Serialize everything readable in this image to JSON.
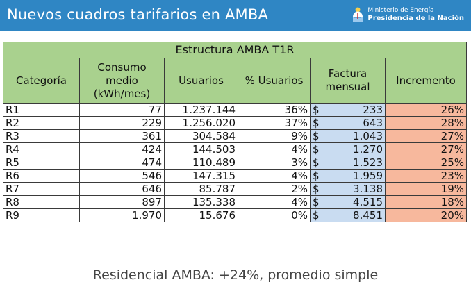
{
  "header": {
    "title": "Nuevos cuadros tarifarios en AMBA",
    "ministry_line1": "Ministerio de Energía",
    "ministry_line2": "Presidencia de la Nación"
  },
  "table": {
    "title": "Estructura AMBA T1R",
    "columns": [
      "Categoría",
      "Consumo medio (kWh/mes)",
      "Usuarios",
      "% Usuarios",
      "Factura mensual",
      "Incremento"
    ],
    "currency": "$",
    "rows": [
      {
        "categoria": "R1",
        "consumo": "77",
        "usuarios": "1.237.144",
        "pct": "36%",
        "factura": "233",
        "incremento": "26%"
      },
      {
        "categoria": "R2",
        "consumo": "229",
        "usuarios": "1.256.020",
        "pct": "37%",
        "factura": "643",
        "incremento": "28%"
      },
      {
        "categoria": "R3",
        "consumo": "361",
        "usuarios": "304.584",
        "pct": "9%",
        "factura": "1.043",
        "incremento": "27%"
      },
      {
        "categoria": "R4",
        "consumo": "424",
        "usuarios": "144.503",
        "pct": "4%",
        "factura": "1.270",
        "incremento": "27%"
      },
      {
        "categoria": "R5",
        "consumo": "474",
        "usuarios": "110.489",
        "pct": "3%",
        "factura": "1.523",
        "incremento": "25%"
      },
      {
        "categoria": "R6",
        "consumo": "546",
        "usuarios": "147.315",
        "pct": "4%",
        "factura": "1.959",
        "incremento": "23%"
      },
      {
        "categoria": "R7",
        "consumo": "646",
        "usuarios": "85.787",
        "pct": "2%",
        "factura": "3.138",
        "incremento": "19%"
      },
      {
        "categoria": "R8",
        "consumo": "897",
        "usuarios": "135.338",
        "pct": "4%",
        "factura": "4.515",
        "incremento": "18%"
      },
      {
        "categoria": "R9",
        "consumo": "1.970",
        "usuarios": "15.676",
        "pct": "0%",
        "factura": "8.451",
        "incremento": "20%"
      }
    ]
  },
  "footer": {
    "text": "Residencial AMBA: +24%, promedio simple"
  },
  "colors": {
    "header_bg": "#2f86c4",
    "green_header": "#a9d18e",
    "invoice_blue": "#c9dcf1",
    "increase_salmon": "#f7b89d"
  },
  "icons": {
    "ministry_logo": "argentina-coat-of-arms-icon"
  }
}
